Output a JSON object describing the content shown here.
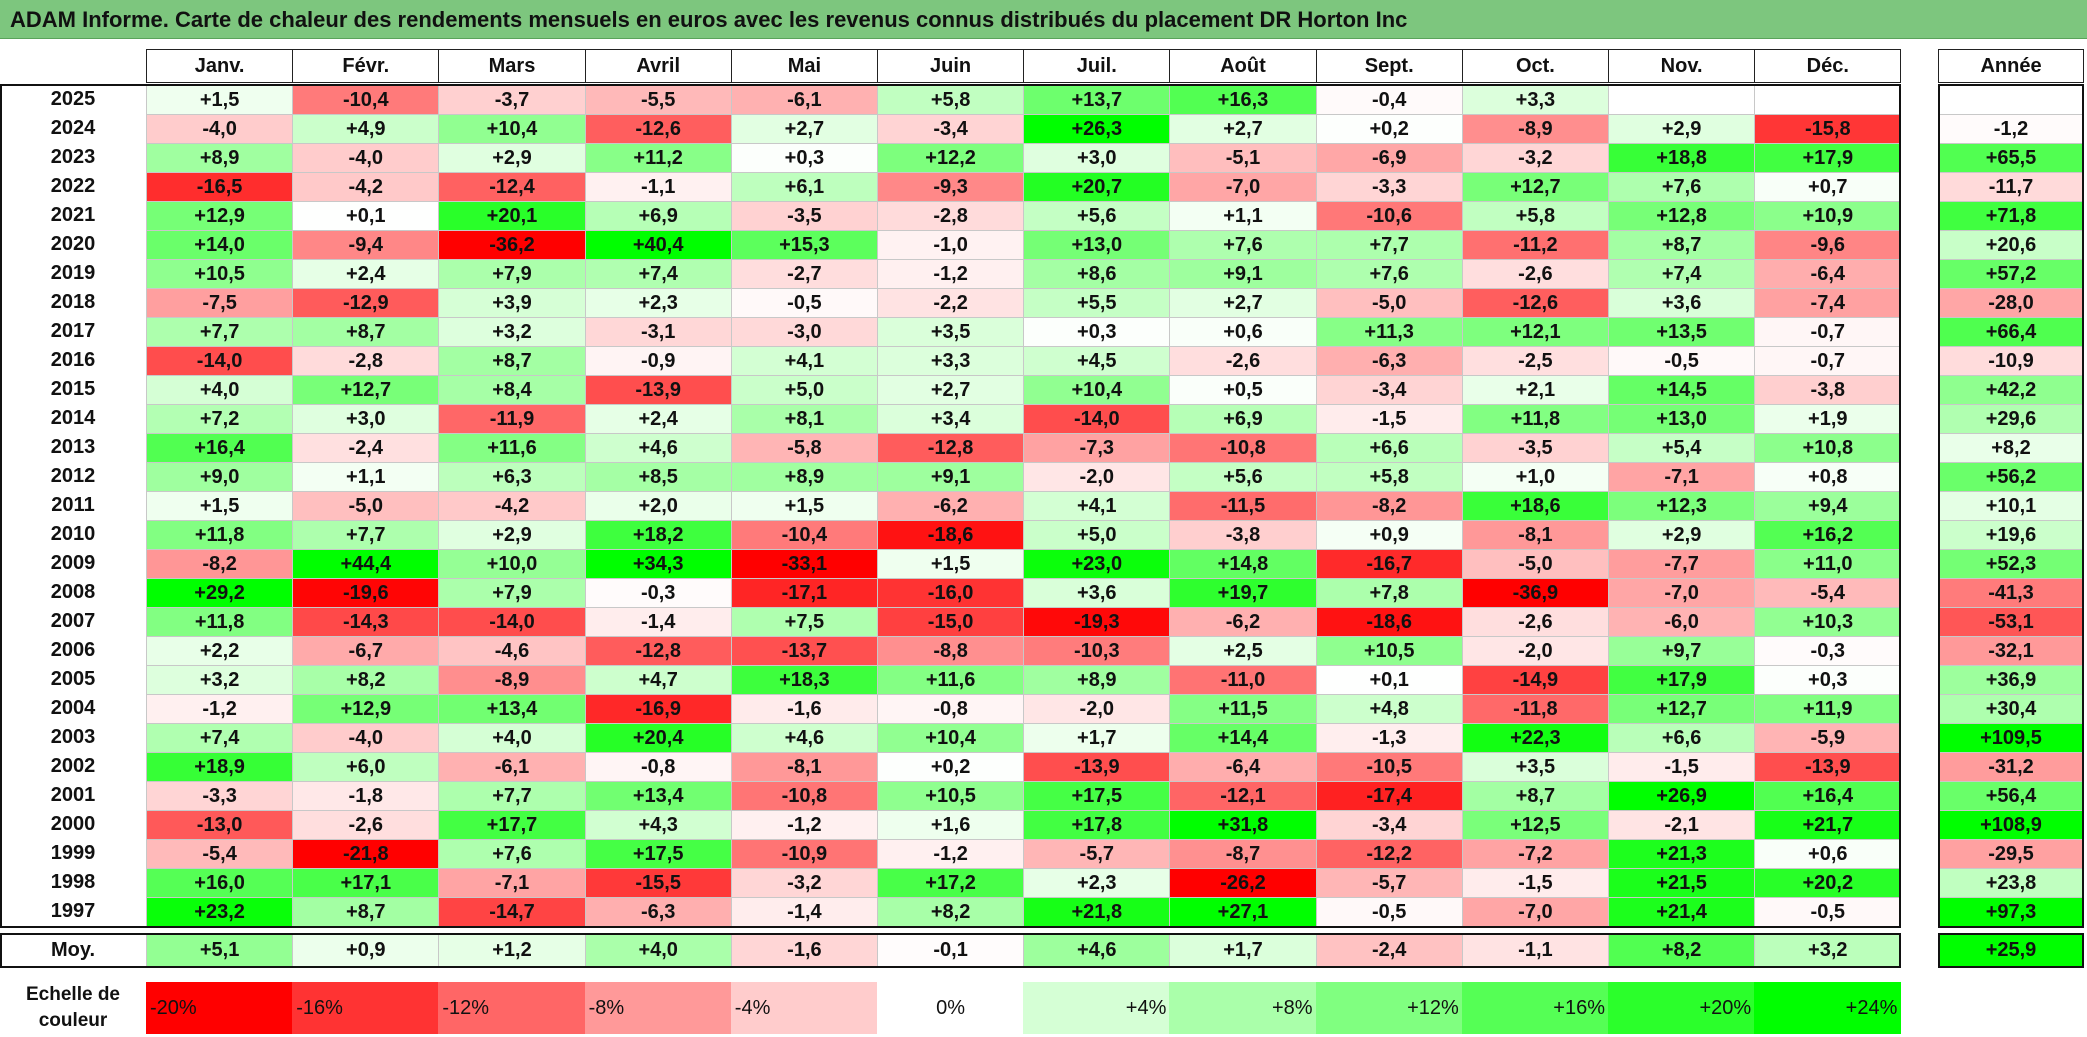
{
  "title": "ADAM Informe. Carte de chaleur des rendements mensuels en euros avec les revenus connus distribués du placement DR Horton Inc",
  "year_header": "Année",
  "average_label": "Moy.",
  "scale_label_line1": "Echelle de",
  "scale_label_line2": "couleur",
  "scale": [
    {
      "label": "-20%",
      "value": -20
    },
    {
      "label": "-16%",
      "value": -16
    },
    {
      "label": "-12%",
      "value": -12
    },
    {
      "label": "-8%",
      "value": -8
    },
    {
      "label": "-4%",
      "value": -4
    },
    {
      "label": "0%",
      "value": 0
    },
    {
      "label": "+4%",
      "value": 4
    },
    {
      "label": "+8%",
      "value": 8
    },
    {
      "label": "+12%",
      "value": 12
    },
    {
      "label": "+16%",
      "value": 16
    },
    {
      "label": "+20%",
      "value": 20
    },
    {
      "label": "+24%",
      "value": 24
    }
  ],
  "chart_data": {
    "type": "heatmap",
    "title": "ADAM Informe. Carte de chaleur des rendements mensuels en euros avec les revenus connus distribués du placement DR Horton Inc",
    "columns": [
      "Janv.",
      "Févr.",
      "Mars",
      "Avril",
      "Mai",
      "Juin",
      "Juil.",
      "Août",
      "Sept.",
      "Oct.",
      "Nov.",
      "Déc."
    ],
    "rows": [
      {
        "year": "2025",
        "values": [
          "+1,5",
          "-10,4",
          "-3,7",
          "-5,5",
          "-6,1",
          "+5,8",
          "+13,7",
          "+16,3",
          "-0,4",
          "+3,3",
          "",
          ""
        ],
        "annual": ""
      },
      {
        "year": "2024",
        "values": [
          "-4,0",
          "+4,9",
          "+10,4",
          "-12,6",
          "+2,7",
          "-3,4",
          "+26,3",
          "+2,7",
          "+0,2",
          "-8,9",
          "+2,9",
          "-15,8"
        ],
        "annual": "-1,2"
      },
      {
        "year": "2023",
        "values": [
          "+8,9",
          "-4,0",
          "+2,9",
          "+11,2",
          "+0,3",
          "+12,2",
          "+3,0",
          "-5,1",
          "-6,9",
          "-3,2",
          "+18,8",
          "+17,9"
        ],
        "annual": "+65,5"
      },
      {
        "year": "2022",
        "values": [
          "-16,5",
          "-4,2",
          "-12,4",
          "-1,1",
          "+6,1",
          "-9,3",
          "+20,7",
          "-7,0",
          "-3,3",
          "+12,7",
          "+7,6",
          "+0,7"
        ],
        "annual": "-11,7"
      },
      {
        "year": "2021",
        "values": [
          "+12,9",
          "+0,1",
          "+20,1",
          "+6,9",
          "-3,5",
          "-2,8",
          "+5,6",
          "+1,1",
          "-10,6",
          "+5,8",
          "+12,8",
          "+10,9"
        ],
        "annual": "+71,8"
      },
      {
        "year": "2020",
        "values": [
          "+14,0",
          "-9,4",
          "-36,2",
          "+40,4",
          "+15,3",
          "-1,0",
          "+13,0",
          "+7,6",
          "+7,7",
          "-11,2",
          "+8,7",
          "-9,6"
        ],
        "annual": "+20,6"
      },
      {
        "year": "2019",
        "values": [
          "+10,5",
          "+2,4",
          "+7,9",
          "+7,4",
          "-2,7",
          "-1,2",
          "+8,6",
          "+9,1",
          "+7,6",
          "-2,6",
          "+7,4",
          "-6,4"
        ],
        "annual": "+57,2"
      },
      {
        "year": "2018",
        "values": [
          "-7,5",
          "-12,9",
          "+3,9",
          "+2,3",
          "-0,5",
          "-2,2",
          "+5,5",
          "+2,7",
          "-5,0",
          "-12,6",
          "+3,6",
          "-7,4"
        ],
        "annual": "-28,0"
      },
      {
        "year": "2017",
        "values": [
          "+7,7",
          "+8,7",
          "+3,2",
          "-3,1",
          "-3,0",
          "+3,5",
          "+0,3",
          "+0,6",
          "+11,3",
          "+12,1",
          "+13,5",
          "-0,7"
        ],
        "annual": "+66,4"
      },
      {
        "year": "2016",
        "values": [
          "-14,0",
          "-2,8",
          "+8,7",
          "-0,9",
          "+4,1",
          "+3,3",
          "+4,5",
          "-2,6",
          "-6,3",
          "-2,5",
          "-0,5",
          "-0,7"
        ],
        "annual": "-10,9"
      },
      {
        "year": "2015",
        "values": [
          "+4,0",
          "+12,7",
          "+8,4",
          "-13,9",
          "+5,0",
          "+2,7",
          "+10,4",
          "+0,5",
          "-3,4",
          "+2,1",
          "+14,5",
          "-3,8"
        ],
        "annual": "+42,2"
      },
      {
        "year": "2014",
        "values": [
          "+7,2",
          "+3,0",
          "-11,9",
          "+2,4",
          "+8,1",
          "+3,4",
          "-14,0",
          "+6,9",
          "-1,5",
          "+11,8",
          "+13,0",
          "+1,9"
        ],
        "annual": "+29,6"
      },
      {
        "year": "2013",
        "values": [
          "+16,4",
          "-2,4",
          "+11,6",
          "+4,6",
          "-5,8",
          "-12,8",
          "-7,3",
          "-10,8",
          "+6,6",
          "-3,5",
          "+5,4",
          "+10,8"
        ],
        "annual": "+8,2"
      },
      {
        "year": "2012",
        "values": [
          "+9,0",
          "+1,1",
          "+6,3",
          "+8,5",
          "+8,9",
          "+9,1",
          "-2,0",
          "+5,6",
          "+5,8",
          "+1,0",
          "-7,1",
          "+0,8"
        ],
        "annual": "+56,2"
      },
      {
        "year": "2011",
        "values": [
          "+1,5",
          "-5,0",
          "-4,2",
          "+2,0",
          "+1,5",
          "-6,2",
          "+4,1",
          "-11,5",
          "-8,2",
          "+18,6",
          "+12,3",
          "+9,4"
        ],
        "annual": "+10,1"
      },
      {
        "year": "2010",
        "values": [
          "+11,8",
          "+7,7",
          "+2,9",
          "+18,2",
          "-10,4",
          "-18,6",
          "+5,0",
          "-3,8",
          "+0,9",
          "-8,1",
          "+2,9",
          "+16,2"
        ],
        "annual": "+19,6"
      },
      {
        "year": "2009",
        "values": [
          "-8,2",
          "+44,4",
          "+10,0",
          "+34,3",
          "-33,1",
          "+1,5",
          "+23,0",
          "+14,8",
          "-16,7",
          "-5,0",
          "-7,7",
          "+11,0"
        ],
        "annual": "+52,3"
      },
      {
        "year": "2008",
        "values": [
          "+29,2",
          "-19,6",
          "+7,9",
          "-0,3",
          "-17,1",
          "-16,0",
          "+3,6",
          "+19,7",
          "+7,8",
          "-36,9",
          "-7,0",
          "-5,4"
        ],
        "annual": "-41,3"
      },
      {
        "year": "2007",
        "values": [
          "+11,8",
          "-14,3",
          "-14,0",
          "-1,4",
          "+7,5",
          "-15,0",
          "-19,3",
          "-6,2",
          "-18,6",
          "-2,6",
          "-6,0",
          "+10,3"
        ],
        "annual": "-53,1"
      },
      {
        "year": "2006",
        "values": [
          "+2,2",
          "-6,7",
          "-4,6",
          "-12,8",
          "-13,7",
          "-8,8",
          "-10,3",
          "+2,5",
          "+10,5",
          "-2,0",
          "+9,7",
          "-0,3"
        ],
        "annual": "-32,1"
      },
      {
        "year": "2005",
        "values": [
          "+3,2",
          "+8,2",
          "-8,9",
          "+4,7",
          "+18,3",
          "+11,6",
          "+8,9",
          "-11,0",
          "+0,1",
          "-14,9",
          "+17,9",
          "+0,3"
        ],
        "annual": "+36,9"
      },
      {
        "year": "2004",
        "values": [
          "-1,2",
          "+12,9",
          "+13,4",
          "-16,9",
          "-1,6",
          "-0,8",
          "-2,0",
          "+11,5",
          "+4,8",
          "-11,8",
          "+12,7",
          "+11,9"
        ],
        "annual": "+30,4"
      },
      {
        "year": "2003",
        "values": [
          "+7,4",
          "-4,0",
          "+4,0",
          "+20,4",
          "+4,6",
          "+10,4",
          "+1,7",
          "+14,4",
          "-1,3",
          "+22,3",
          "+6,6",
          "-5,9"
        ],
        "annual": "+109,5"
      },
      {
        "year": "2002",
        "values": [
          "+18,9",
          "+6,0",
          "-6,1",
          "-0,8",
          "-8,1",
          "+0,2",
          "-13,9",
          "-6,4",
          "-10,5",
          "+3,5",
          "-1,5",
          "-13,9"
        ],
        "annual": "-31,2"
      },
      {
        "year": "2001",
        "values": [
          "-3,3",
          "-1,8",
          "+7,7",
          "+13,4",
          "-10,8",
          "+10,5",
          "+17,5",
          "-12,1",
          "-17,4",
          "+8,7",
          "+26,9",
          "+16,4"
        ],
        "annual": "+56,4"
      },
      {
        "year": "2000",
        "values": [
          "-13,0",
          "-2,6",
          "+17,7",
          "+4,3",
          "-1,2",
          "+1,6",
          "+17,8",
          "+31,8",
          "-3,4",
          "+12,5",
          "-2,1",
          "+21,7"
        ],
        "annual": "+108,9"
      },
      {
        "year": "1999",
        "values": [
          "-5,4",
          "-21,8",
          "+7,6",
          "+17,5",
          "-10,9",
          "-1,2",
          "-5,7",
          "-8,7",
          "-12,2",
          "-7,2",
          "+21,3",
          "+0,6"
        ],
        "annual": "-29,5"
      },
      {
        "year": "1998",
        "values": [
          "+16,0",
          "+17,1",
          "-7,1",
          "-15,5",
          "-3,2",
          "+17,2",
          "+2,3",
          "-26,2",
          "-5,7",
          "-1,5",
          "+21,5",
          "+20,2"
        ],
        "annual": "+23,8"
      },
      {
        "year": "1997",
        "values": [
          "+23,2",
          "+8,7",
          "-14,7",
          "-6,3",
          "-1,4",
          "+8,2",
          "+21,8",
          "+27,1",
          "-0,5",
          "-7,0",
          "+21,4",
          "-0,5"
        ],
        "annual": "+97,3"
      }
    ],
    "averages": [
      "+5,1",
      "+0,9",
      "+1,2",
      "+4,0",
      "-1,6",
      "-0,1",
      "+4,6",
      "+1,7",
      "-2,4",
      "-1,1",
      "+8,2",
      "+3,2"
    ],
    "average_annual": "+25,9",
    "color_scale": {
      "min_color": "#ff0000",
      "mid_color": "#ffffff",
      "max_color": "#00ff00",
      "min_value": -20,
      "mid_value": 0,
      "max_value": 24
    }
  }
}
